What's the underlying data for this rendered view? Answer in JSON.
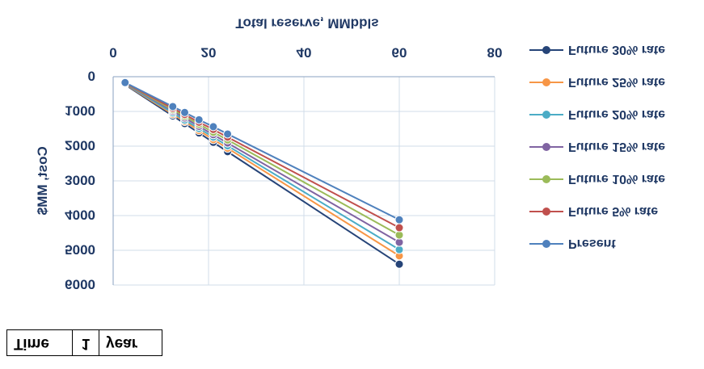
{
  "chart_data": {
    "type": "line",
    "title": "Total reserve, MMbbls",
    "y_label": "Cost, MM$",
    "x": [
      2.5,
      12.5,
      15,
      18,
      21,
      24,
      60
    ],
    "series": [
      {
        "name": "Future 30% rate",
        "color": "#264478",
        "values": [
          230,
          1130,
          1350,
          1620,
          1890,
          2160,
          5400
        ]
      },
      {
        "name": "Future 25% rate",
        "color": "#f79646",
        "values": [
          220,
          1080,
          1290,
          1550,
          1810,
          2060,
          5160
        ]
      },
      {
        "name": "Future 20% rate",
        "color": "#4bacc6",
        "values": [
          210,
          1040,
          1250,
          1490,
          1740,
          1990,
          4980
        ]
      },
      {
        "name": "Future 15% rate",
        "color": "#8064a2",
        "values": [
          200,
          990,
          1190,
          1430,
          1670,
          1910,
          4770
        ]
      },
      {
        "name": "Future 10% rate",
        "color": "#9bbb59",
        "values": [
          190,
          950,
          1140,
          1370,
          1600,
          1820,
          4560
        ]
      },
      {
        "name": "Future 5% rate",
        "color": "#c0504d",
        "values": [
          180,
          910,
          1090,
          1310,
          1520,
          1740,
          4350
        ]
      },
      {
        "name": "Present",
        "color": "#4f81bd",
        "values": [
          170,
          860,
          1030,
          1240,
          1440,
          1650,
          4120
        ]
      }
    ],
    "xlim": [
      0,
      80
    ],
    "xticks": [
      0,
      20,
      40,
      60,
      80
    ],
    "ylim": [
      0,
      6000
    ],
    "yticks": [
      0,
      1000,
      2000,
      3000,
      4000,
      5000,
      6000
    ],
    "grid": true,
    "legend": "right"
  },
  "table": {
    "rows": [
      [
        "Time",
        1,
        "year"
      ]
    ]
  }
}
